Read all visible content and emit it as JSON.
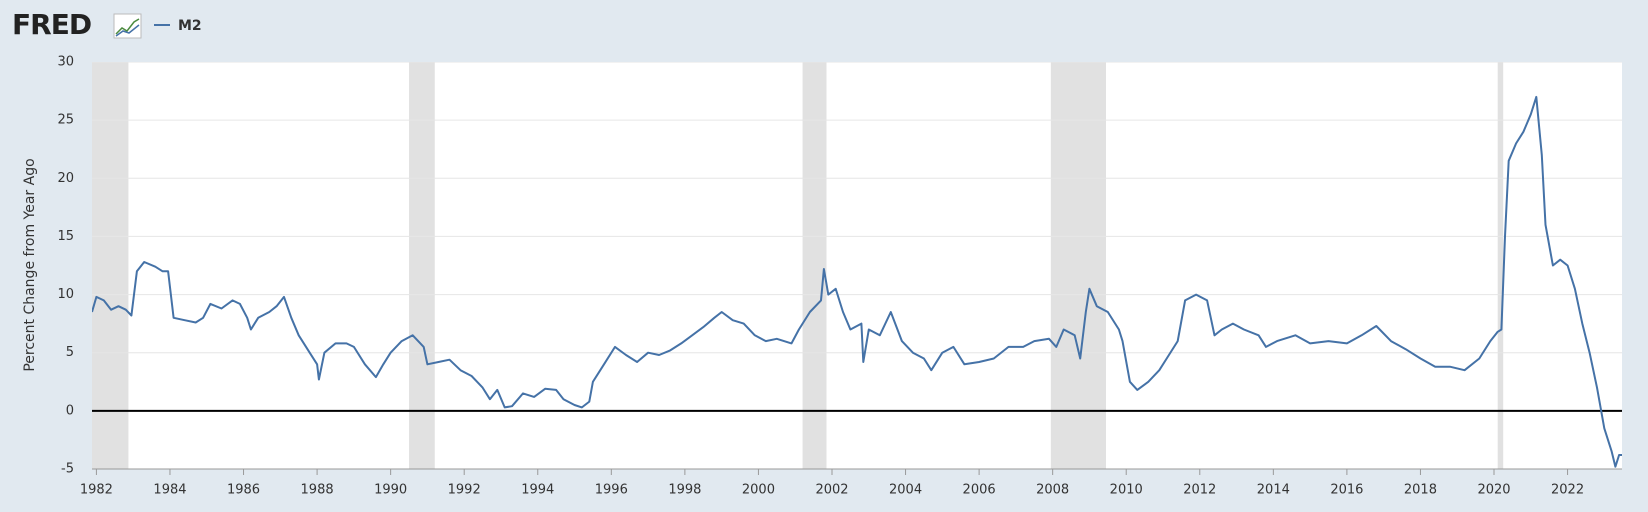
{
  "chart_data": {
    "type": "line",
    "source_logo": "FRED",
    "ylabel": "Percent Change from Year Ago",
    "x": [
      1981.88,
      1982.0,
      1982.2,
      1982.4,
      1982.6,
      1982.8,
      1982.95,
      1983.1,
      1983.3,
      1983.6,
      1983.8,
      1983.95,
      1984.1,
      1984.4,
      1984.7,
      1984.9,
      1985.1,
      1985.4,
      1985.7,
      1985.9,
      1986.1,
      1986.2,
      1986.4,
      1986.7,
      1986.9,
      1987.1,
      1987.3,
      1987.5,
      1987.8,
      1988.0,
      1988.05,
      1988.2,
      1988.5,
      1988.8,
      1989.0,
      1989.3,
      1989.6,
      1989.8,
      1990.0,
      1990.3,
      1990.6,
      1990.9,
      1991.0,
      1991.3,
      1991.6,
      1991.9,
      1992.2,
      1992.5,
      1992.7,
      1992.9,
      1993.1,
      1993.3,
      1993.6,
      1993.9,
      1994.2,
      1994.5,
      1994.7,
      1995.0,
      1995.2,
      1995.4,
      1995.5,
      1995.8,
      1996.1,
      1996.4,
      1996.7,
      1997.0,
      1997.3,
      1997.6,
      1997.9,
      1998.2,
      1998.5,
      1998.8,
      1999.0,
      1999.3,
      1999.6,
      1999.9,
      2000.2,
      2000.5,
      2000.9,
      2001.1,
      2001.4,
      2001.7,
      2001.78,
      2001.9,
      2002.1,
      2002.3,
      2002.5,
      2002.8,
      2002.85,
      2003.0,
      2003.3,
      2003.6,
      2003.9,
      2004.2,
      2004.5,
      2004.7,
      2005.0,
      2005.3,
      2005.6,
      2006.0,
      2006.4,
      2006.8,
      2007.2,
      2007.5,
      2007.9,
      2008.1,
      2008.3,
      2008.6,
      2008.75,
      2008.9,
      2009.0,
      2009.2,
      2009.5,
      2009.8,
      2009.9,
      2010.1,
      2010.3,
      2010.6,
      2010.9,
      2011.1,
      2011.4,
      2011.6,
      2011.9,
      2012.2,
      2012.4,
      2012.6,
      2012.9,
      2013.2,
      2013.6,
      2013.8,
      2014.1,
      2014.6,
      2015.0,
      2015.5,
      2016.0,
      2016.4,
      2016.8,
      2017.2,
      2017.6,
      2018.0,
      2018.4,
      2018.8,
      2019.2,
      2019.6,
      2019.9,
      2020.1,
      2020.2,
      2020.3,
      2020.4,
      2020.6,
      2020.8,
      2021.0,
      2021.15,
      2021.3,
      2021.4,
      2021.6,
      2021.8,
      2022.0,
      2022.2,
      2022.4,
      2022.6,
      2022.8,
      2023.0,
      2023.2,
      2023.3,
      2023.4,
      2023.48
    ],
    "series": [
      {
        "name": "M2",
        "color": "#4572a7",
        "values": [
          8.5,
          9.8,
          9.5,
          8.7,
          9.0,
          8.7,
          8.2,
          12.0,
          12.8,
          12.4,
          12.0,
          12.0,
          8.0,
          7.8,
          7.6,
          8.0,
          9.2,
          8.8,
          9.5,
          9.2,
          8.0,
          7.0,
          8.0,
          8.5,
          9.0,
          9.8,
          8.0,
          6.5,
          5.0,
          4.0,
          2.7,
          5.0,
          5.8,
          5.8,
          5.5,
          4.0,
          2.9,
          4.0,
          5.0,
          6.0,
          6.5,
          5.5,
          4.0,
          4.2,
          4.4,
          3.5,
          3.0,
          2.0,
          1.0,
          1.8,
          0.3,
          0.4,
          1.5,
          1.2,
          1.9,
          1.8,
          1.0,
          0.5,
          0.3,
          0.8,
          2.5,
          4.0,
          5.5,
          4.8,
          4.2,
          5.0,
          4.8,
          5.2,
          5.8,
          6.5,
          7.2,
          8.0,
          8.5,
          7.8,
          7.5,
          6.5,
          6.0,
          6.2,
          5.8,
          7.0,
          8.5,
          9.5,
          12.2,
          10.0,
          10.5,
          8.5,
          7.0,
          7.5,
          4.2,
          7.0,
          6.5,
          8.5,
          6.0,
          5.0,
          4.5,
          3.5,
          5.0,
          5.5,
          4.0,
          4.2,
          4.5,
          5.5,
          5.5,
          6.0,
          6.2,
          5.5,
          7.0,
          6.5,
          4.5,
          8.5,
          10.5,
          9.0,
          8.5,
          7.0,
          6.0,
          2.5,
          1.8,
          2.5,
          3.5,
          4.5,
          6.0,
          9.5,
          10.0,
          9.5,
          6.5,
          7.0,
          7.5,
          7.0,
          6.5,
          5.5,
          6.0,
          6.5,
          5.8,
          6.0,
          5.8,
          6.5,
          7.3,
          6.0,
          5.3,
          4.5,
          3.8,
          3.8,
          3.5,
          4.5,
          6.0,
          6.8,
          7.0,
          15.0,
          21.5,
          23.0,
          24.0,
          25.5,
          27.0,
          22.0,
          16.0,
          12.5,
          13.0,
          12.5,
          10.5,
          7.5,
          5.0,
          2.0,
          -1.5,
          -3.5,
          -4.8,
          -3.8,
          -3.8
        ]
      }
    ],
    "recessions": [
      [
        1981.5,
        1982.87
      ],
      [
        1990.5,
        1991.2
      ],
      [
        2001.2,
        2001.85
      ],
      [
        2007.95,
        2009.45
      ],
      [
        2020.1,
        2020.25
      ]
    ],
    "xlim": [
      1981.88,
      2023.48
    ],
    "ylim": [
      -5,
      30
    ],
    "xticks": [
      1982,
      1984,
      1986,
      1988,
      1990,
      1992,
      1994,
      1996,
      1998,
      2000,
      2002,
      2004,
      2006,
      2008,
      2010,
      2012,
      2014,
      2016,
      2018,
      2020,
      2022
    ],
    "yticks": [
      -5,
      0,
      5,
      10,
      15,
      20,
      25,
      30
    ],
    "grid": true,
    "zero_line": true
  }
}
